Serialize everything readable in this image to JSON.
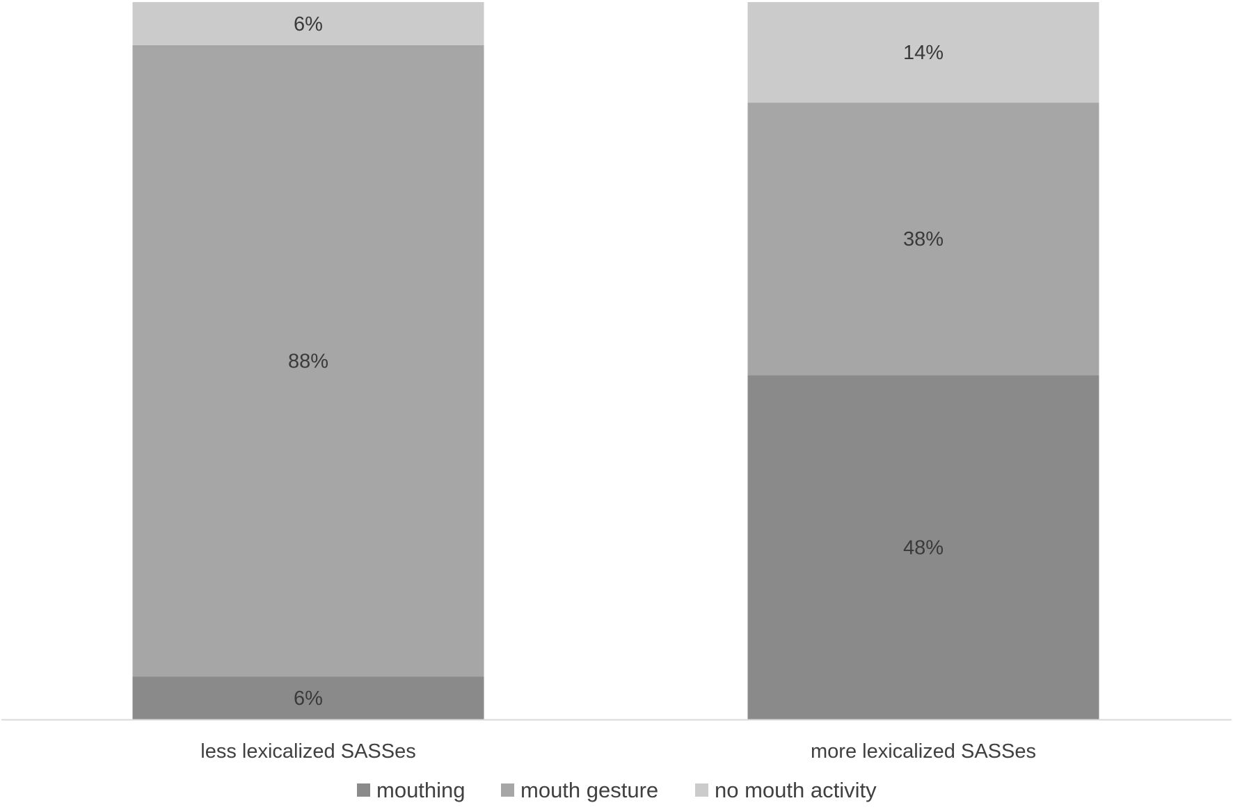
{
  "chart_data": {
    "type": "bar",
    "stacked": true,
    "normalized": true,
    "categories": [
      "less lexicalized SASSes",
      "more lexicalized SASSes"
    ],
    "series": [
      {
        "name": "mouthing",
        "values": [
          6,
          48
        ],
        "labels": [
          "6%",
          "48%"
        ],
        "color": "#8a8a8a"
      },
      {
        "name": "mouth gesture",
        "values": [
          88,
          38
        ],
        "labels": [
          "88%",
          "38%"
        ],
        "color": "#a6a6a6"
      },
      {
        "name": "no mouth activity",
        "values": [
          6,
          14
        ],
        "labels": [
          "6%",
          "14%"
        ],
        "color": "#cbcbcb"
      }
    ],
    "ylim": [
      0,
      100
    ],
    "title": "",
    "xlabel": "",
    "ylabel": "",
    "grid": false,
    "legend": "bottom-center",
    "axis_color": "#d9d9d9"
  }
}
